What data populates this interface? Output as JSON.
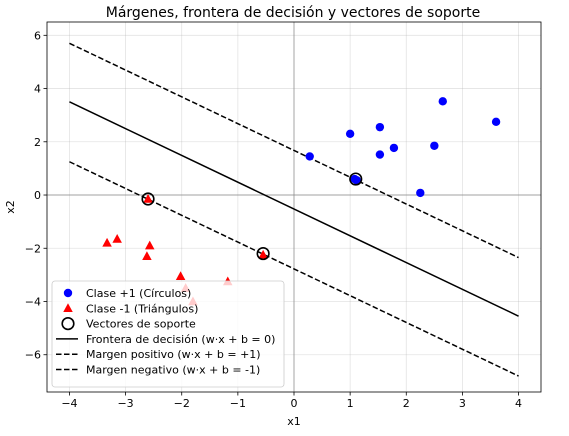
{
  "chart_data": {
    "type": "scatter",
    "title": "Márgenes, frontera de decisión y vectores de soporte",
    "xlabel": "x1",
    "ylabel": "x2",
    "xlim": [
      -4.4,
      4.4
    ],
    "ylim": [
      -7.4,
      6.5
    ],
    "xticks": [
      -4,
      -3,
      -2,
      -1,
      0,
      1,
      2,
      3,
      4
    ],
    "yticks": [
      -6,
      -4,
      -2,
      0,
      2,
      4,
      6
    ],
    "grid": true,
    "legend_position": "lower-left",
    "series": [
      {
        "name": "Clase +1 (Círculos)",
        "marker": "circle",
        "color": "#0000ff",
        "points": [
          [
            0.28,
            1.45
          ],
          [
            1.0,
            2.3
          ],
          [
            1.08,
            0.6
          ],
          [
            1.12,
            0.55
          ],
          [
            1.53,
            2.55
          ],
          [
            1.53,
            1.52
          ],
          [
            1.78,
            1.77
          ],
          [
            2.25,
            0.08
          ],
          [
            2.5,
            1.85
          ],
          [
            2.65,
            3.52
          ],
          [
            3.6,
            2.75
          ]
        ]
      },
      {
        "name": "Clase -1 (Triángulos)",
        "marker": "triangle",
        "color": "#ff0000",
        "points": [
          [
            -3.33,
            -1.8
          ],
          [
            -3.15,
            -1.65
          ],
          [
            -2.62,
            -2.3
          ],
          [
            -2.57,
            -1.9
          ],
          [
            -2.6,
            -0.15
          ],
          [
            -2.02,
            -3.05
          ],
          [
            -1.93,
            -3.5
          ],
          [
            -1.8,
            -4.0
          ],
          [
            -1.18,
            -3.25
          ],
          [
            -0.55,
            -2.25
          ]
        ]
      },
      {
        "name": "Vectores de soporte",
        "marker": "open-circle",
        "color": "#000000",
        "points": [
          [
            -2.6,
            -0.15
          ],
          [
            -0.55,
            -2.2
          ],
          [
            1.1,
            0.6
          ]
        ]
      },
      {
        "name": "Frontera de decisión (w·x + b = 0)",
        "type": "line",
        "style": "solid",
        "color": "#000000",
        "x": [
          -4,
          4
        ],
        "y": [
          3.5,
          -4.55
        ]
      },
      {
        "name": "Margen positivo (w·x + b = +1)",
        "type": "line",
        "style": "dashed",
        "color": "#000000",
        "x": [
          -4,
          4
        ],
        "y": [
          5.7,
          -2.35
        ]
      },
      {
        "name": "Margen negativo (w·x + b = -1)",
        "type": "line",
        "style": "dashed",
        "color": "#000000",
        "x": [
          -4,
          4
        ],
        "y": [
          1.25,
          -6.8
        ]
      }
    ]
  }
}
